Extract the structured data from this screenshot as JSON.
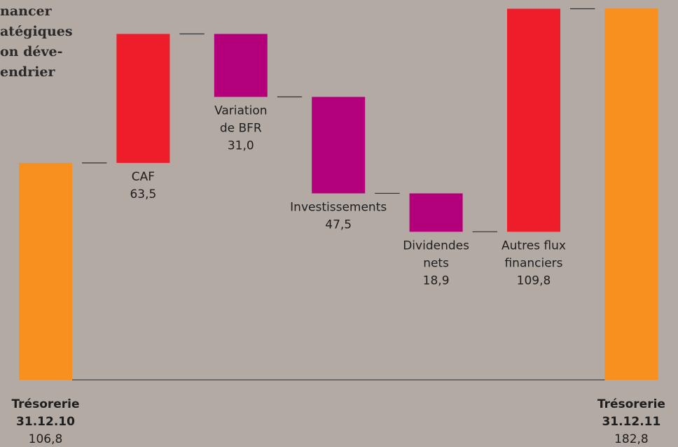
{
  "chart_data": {
    "type": "waterfall",
    "annotation_lines": [
      "nancer",
      "atégiques",
      "on déve-",
      "endrier"
    ],
    "categories": [
      [
        "Trésorerie",
        "31.12.10"
      ],
      [
        "CAF"
      ],
      [
        "Variation",
        "de BFR"
      ],
      [
        "Investissements"
      ],
      [
        "Dividendes",
        "nets"
      ],
      [
        "Autres flux",
        "financiers"
      ],
      [
        "Trésorerie",
        "31.12.11"
      ]
    ],
    "values": [
      106.8,
      63.5,
      -31.0,
      -47.5,
      -18.9,
      109.8,
      182.8
    ],
    "value_labels": [
      "106,8",
      "63,5",
      "31,0",
      "47,5",
      "18,9",
      "109,8",
      "182,8"
    ],
    "totals": [
      0,
      6
    ],
    "colors": [
      "#f7901e",
      "#ee1d2a",
      "#b3007a",
      "#b3007a",
      "#b3007a",
      "#ee1d2a",
      "#f7901e"
    ],
    "ylim": [
      0,
      187
    ]
  }
}
